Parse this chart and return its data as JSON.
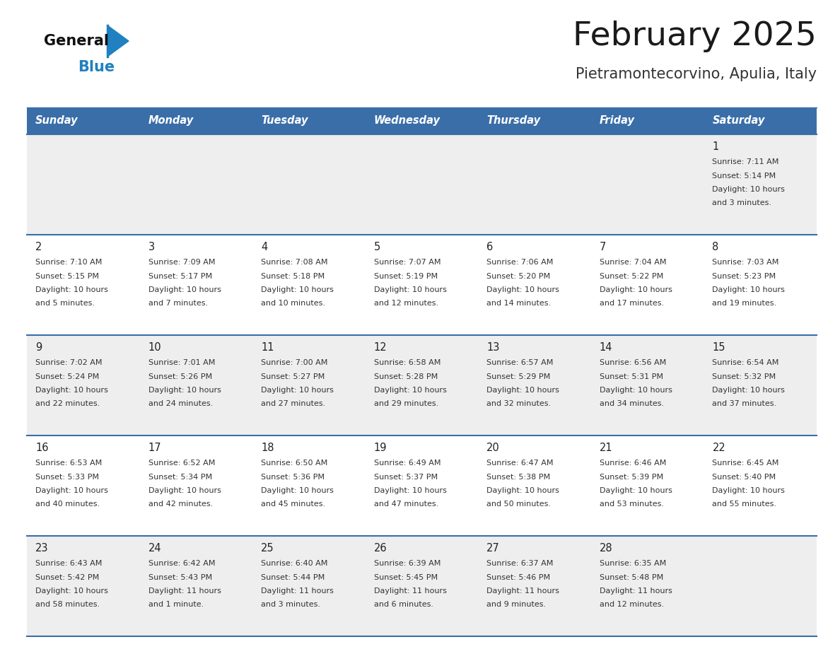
{
  "title": "February 2025",
  "subtitle": "Pietramontecorvino, Apulia, Italy",
  "days_of_week": [
    "Sunday",
    "Monday",
    "Tuesday",
    "Wednesday",
    "Thursday",
    "Friday",
    "Saturday"
  ],
  "header_bg": "#3a6ea8",
  "header_text": "#ffffff",
  "row_bg_light": "#eeeeee",
  "row_bg_white": "#ffffff",
  "cell_text_color": "#333333",
  "day_num_color": "#222222",
  "border_color": "#3a6ea8",
  "title_color": "#1a1a1a",
  "subtitle_color": "#333333",
  "logo_general_color": "#111111",
  "logo_blue_color": "#2080c0",
  "calendar_data": [
    [
      null,
      null,
      null,
      null,
      null,
      null,
      {
        "day": 1,
        "sunrise": "7:11 AM",
        "sunset": "5:14 PM",
        "daylight": "10 hours and 3 minutes."
      }
    ],
    [
      {
        "day": 2,
        "sunrise": "7:10 AM",
        "sunset": "5:15 PM",
        "daylight": "10 hours and 5 minutes."
      },
      {
        "day": 3,
        "sunrise": "7:09 AM",
        "sunset": "5:17 PM",
        "daylight": "10 hours and 7 minutes."
      },
      {
        "day": 4,
        "sunrise": "7:08 AM",
        "sunset": "5:18 PM",
        "daylight": "10 hours and 10 minutes."
      },
      {
        "day": 5,
        "sunrise": "7:07 AM",
        "sunset": "5:19 PM",
        "daylight": "10 hours and 12 minutes."
      },
      {
        "day": 6,
        "sunrise": "7:06 AM",
        "sunset": "5:20 PM",
        "daylight": "10 hours and 14 minutes."
      },
      {
        "day": 7,
        "sunrise": "7:04 AM",
        "sunset": "5:22 PM",
        "daylight": "10 hours and 17 minutes."
      },
      {
        "day": 8,
        "sunrise": "7:03 AM",
        "sunset": "5:23 PM",
        "daylight": "10 hours and 19 minutes."
      }
    ],
    [
      {
        "day": 9,
        "sunrise": "7:02 AM",
        "sunset": "5:24 PM",
        "daylight": "10 hours and 22 minutes."
      },
      {
        "day": 10,
        "sunrise": "7:01 AM",
        "sunset": "5:26 PM",
        "daylight": "10 hours and 24 minutes."
      },
      {
        "day": 11,
        "sunrise": "7:00 AM",
        "sunset": "5:27 PM",
        "daylight": "10 hours and 27 minutes."
      },
      {
        "day": 12,
        "sunrise": "6:58 AM",
        "sunset": "5:28 PM",
        "daylight": "10 hours and 29 minutes."
      },
      {
        "day": 13,
        "sunrise": "6:57 AM",
        "sunset": "5:29 PM",
        "daylight": "10 hours and 32 minutes."
      },
      {
        "day": 14,
        "sunrise": "6:56 AM",
        "sunset": "5:31 PM",
        "daylight": "10 hours and 34 minutes."
      },
      {
        "day": 15,
        "sunrise": "6:54 AM",
        "sunset": "5:32 PM",
        "daylight": "10 hours and 37 minutes."
      }
    ],
    [
      {
        "day": 16,
        "sunrise": "6:53 AM",
        "sunset": "5:33 PM",
        "daylight": "10 hours and 40 minutes."
      },
      {
        "day": 17,
        "sunrise": "6:52 AM",
        "sunset": "5:34 PM",
        "daylight": "10 hours and 42 minutes."
      },
      {
        "day": 18,
        "sunrise": "6:50 AM",
        "sunset": "5:36 PM",
        "daylight": "10 hours and 45 minutes."
      },
      {
        "day": 19,
        "sunrise": "6:49 AM",
        "sunset": "5:37 PM",
        "daylight": "10 hours and 47 minutes."
      },
      {
        "day": 20,
        "sunrise": "6:47 AM",
        "sunset": "5:38 PM",
        "daylight": "10 hours and 50 minutes."
      },
      {
        "day": 21,
        "sunrise": "6:46 AM",
        "sunset": "5:39 PM",
        "daylight": "10 hours and 53 minutes."
      },
      {
        "day": 22,
        "sunrise": "6:45 AM",
        "sunset": "5:40 PM",
        "daylight": "10 hours and 55 minutes."
      }
    ],
    [
      {
        "day": 23,
        "sunrise": "6:43 AM",
        "sunset": "5:42 PM",
        "daylight": "10 hours and 58 minutes."
      },
      {
        "day": 24,
        "sunrise": "6:42 AM",
        "sunset": "5:43 PM",
        "daylight": "11 hours and 1 minute."
      },
      {
        "day": 25,
        "sunrise": "6:40 AM",
        "sunset": "5:44 PM",
        "daylight": "11 hours and 3 minutes."
      },
      {
        "day": 26,
        "sunrise": "6:39 AM",
        "sunset": "5:45 PM",
        "daylight": "11 hours and 6 minutes."
      },
      {
        "day": 27,
        "sunrise": "6:37 AM",
        "sunset": "5:46 PM",
        "daylight": "11 hours and 9 minutes."
      },
      {
        "day": 28,
        "sunrise": "6:35 AM",
        "sunset": "5:48 PM",
        "daylight": "11 hours and 12 minutes."
      },
      null
    ]
  ],
  "row_colors": [
    "#eeeeee",
    "#ffffff",
    "#eeeeee",
    "#ffffff",
    "#eeeeee"
  ]
}
